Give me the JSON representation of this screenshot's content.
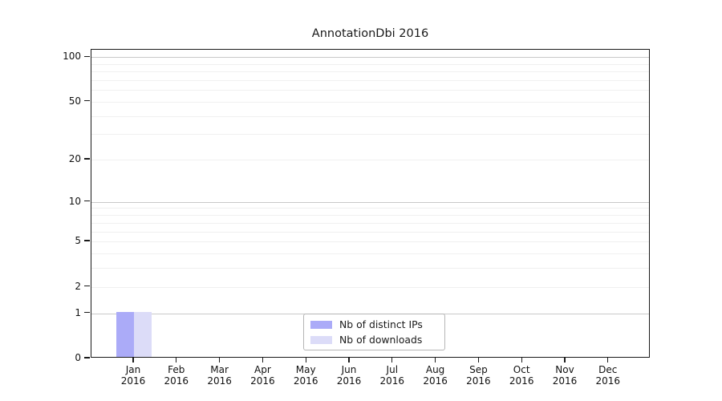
{
  "chart_data": {
    "type": "bar",
    "title": "AnnotationDbi 2016",
    "xlabel": "",
    "ylabel": "",
    "categories": [
      "Jan",
      "Feb",
      "Mar",
      "Apr",
      "May",
      "Jun",
      "Jul",
      "Aug",
      "Sep",
      "Oct",
      "Nov",
      "Dec"
    ],
    "category_year": "2016",
    "series": [
      {
        "name": "Nb of distinct IPs",
        "color": "#ababf8",
        "values": [
          1,
          0,
          0,
          0,
          0,
          0,
          0,
          0,
          0,
          0,
          0,
          0
        ]
      },
      {
        "name": "Nb of downloads",
        "color": "#dcdcf8",
        "values": [
          1,
          0,
          0,
          0,
          0,
          0,
          0,
          0,
          0,
          0,
          0,
          0
        ]
      }
    ],
    "yscale": "log10(1+v)",
    "ylim": [
      0,
      112
    ],
    "ytick_values": [
      0,
      1,
      2,
      5,
      10,
      20,
      50,
      100
    ],
    "ytick_labels": [
      "0",
      "1",
      "2",
      "5",
      "10",
      "20",
      "50",
      "100"
    ],
    "major_gridlines": [
      1,
      10,
      100
    ],
    "minor_gridlines": [
      2,
      3,
      4,
      5,
      6,
      7,
      8,
      9,
      20,
      30,
      40,
      50,
      60,
      70,
      80,
      90
    ],
    "grid": true,
    "legend_position": "lower center"
  },
  "colors": {
    "bar_distinct_ips": "#ababf8",
    "bar_downloads": "#dcdcf8",
    "axis": "#1a1a1a",
    "major_grid": "#c9c9c9",
    "minor_grid": "#f0f0f0",
    "legend_border": "#b5b5b5"
  }
}
